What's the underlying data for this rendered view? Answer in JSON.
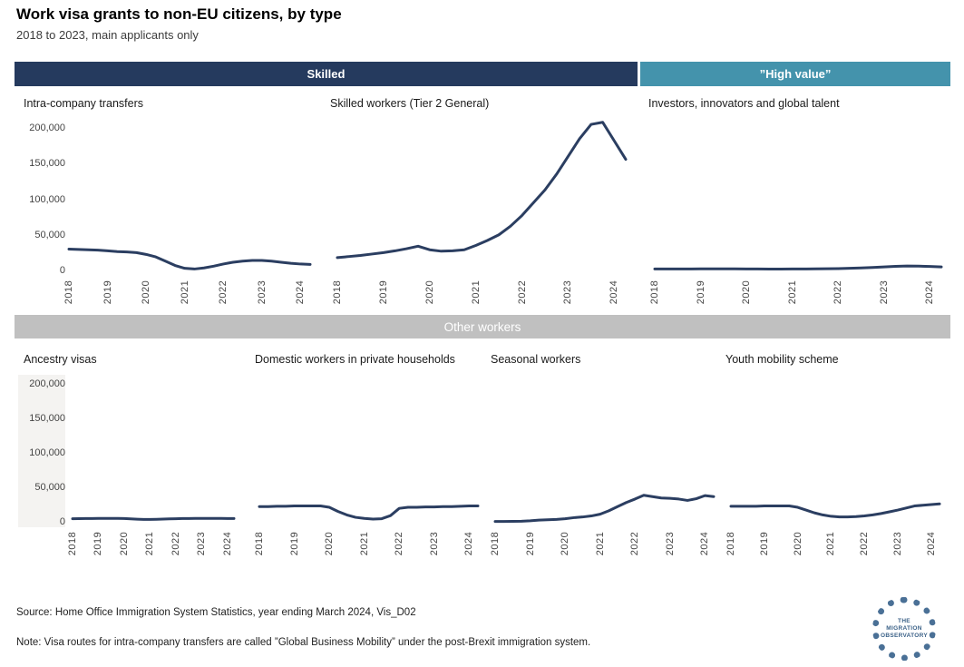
{
  "header": {
    "title": "Work visa grants to non-EU citizens, by type",
    "subtitle": "2018 to 2023, main applicants only"
  },
  "bands": {
    "skilled": "Skilled",
    "high_value": "”High value”",
    "other_workers": "Other workers"
  },
  "colors": {
    "navy_band": "#253a5e",
    "teal_band": "#4493ac",
    "gray_band": "#c0c0c0",
    "line": "#2b3e61",
    "axis_panel_bg": "#f4f3f1"
  },
  "axis": {
    "xlim": [
      2018,
      2024.25
    ],
    "ylim": [
      0,
      200000
    ],
    "xticks": [
      2018,
      2019,
      2020,
      2021,
      2022,
      2023,
      2024
    ],
    "yticks": [
      0,
      50000,
      100000,
      150000,
      200000
    ]
  },
  "chart_data": [
    {
      "type": "line",
      "title": "Intra-company transfers",
      "group": "Skilled",
      "x": [
        2018,
        2018.25,
        2018.5,
        2018.75,
        2019,
        2019.25,
        2019.5,
        2019.75,
        2020,
        2020.25,
        2020.5,
        2020.75,
        2021,
        2021.25,
        2021.5,
        2021.75,
        2022,
        2022.25,
        2022.5,
        2022.75,
        2023,
        2023.25,
        2023.5,
        2023.75,
        2024,
        2024.25
      ],
      "y": [
        30000,
        29500,
        29000,
        28500,
        27500,
        26500,
        26000,
        25000,
        22500,
        19000,
        13000,
        7000,
        3000,
        2000,
        3500,
        6000,
        9000,
        11500,
        13000,
        14000,
        14000,
        13000,
        11500,
        10000,
        9000,
        8500
      ]
    },
    {
      "type": "line",
      "title": "Skilled workers (Tier 2 General)",
      "group": "Skilled",
      "x": [
        2018,
        2018.25,
        2018.5,
        2018.75,
        2019,
        2019.25,
        2019.5,
        2019.75,
        2020,
        2020.25,
        2020.5,
        2020.75,
        2021,
        2021.25,
        2021.5,
        2021.75,
        2022,
        2022.25,
        2022.5,
        2022.75,
        2023,
        2023.25,
        2023.5,
        2023.75,
        2024,
        2024.25
      ],
      "y": [
        18000,
        19500,
        21000,
        23000,
        25000,
        27500,
        30500,
        34000,
        29000,
        27000,
        27500,
        29000,
        35000,
        42000,
        50000,
        62000,
        77000,
        95000,
        113000,
        135000,
        160000,
        185000,
        205000,
        208000,
        182000,
        156000
      ]
    },
    {
      "type": "line",
      "title": "Investors, innovators and global talent",
      "group": "”High value”",
      "x": [
        2018,
        2018.25,
        2018.5,
        2018.75,
        2019,
        2019.25,
        2019.5,
        2019.75,
        2020,
        2020.25,
        2020.5,
        2020.75,
        2021,
        2021.25,
        2021.5,
        2021.75,
        2022,
        2022.25,
        2022.5,
        2022.75,
        2023,
        2023.25,
        2023.5,
        2023.75,
        2024,
        2024.25
      ],
      "y": [
        2000,
        2000,
        2100,
        2100,
        2200,
        2300,
        2300,
        2200,
        2100,
        2000,
        1900,
        1900,
        2000,
        2100,
        2200,
        2400,
        2600,
        3000,
        3500,
        4200,
        5000,
        5700,
        6200,
        6000,
        5500,
        5000
      ]
    },
    {
      "type": "line",
      "title": "Ancestry visas",
      "group": "Other workers",
      "x": [
        2018,
        2018.25,
        2018.5,
        2018.75,
        2019,
        2019.25,
        2019.5,
        2019.75,
        2020,
        2020.25,
        2020.5,
        2020.75,
        2021,
        2021.25,
        2021.5,
        2021.75,
        2022,
        2022.25,
        2022.5,
        2022.75,
        2023,
        2023.25,
        2023.5,
        2023.75,
        2024,
        2024.25
      ],
      "y": [
        4500,
        4600,
        4700,
        4800,
        5000,
        5000,
        5000,
        4900,
        4700,
        4200,
        3800,
        3500,
        3400,
        3600,
        3900,
        4200,
        4500,
        4700,
        4800,
        4900,
        5000,
        5000,
        4900,
        4900,
        4800,
        4800
      ]
    },
    {
      "type": "line",
      "title": "Domestic workers in private households",
      "group": "Other workers",
      "x": [
        2018,
        2018.25,
        2018.5,
        2018.75,
        2019,
        2019.25,
        2019.5,
        2019.75,
        2020,
        2020.25,
        2020.5,
        2020.75,
        2021,
        2021.25,
        2021.5,
        2021.75,
        2022,
        2022.25,
        2022.5,
        2022.75,
        2023,
        2023.25,
        2023.5,
        2023.75,
        2024,
        2024.25
      ],
      "y": [
        22000,
        22000,
        22500,
        22500,
        23000,
        23000,
        23000,
        23000,
        21000,
        15000,
        10000,
        6500,
        5000,
        4000,
        4500,
        9000,
        19500,
        21000,
        21000,
        21500,
        21500,
        22000,
        22000,
        22500,
        23000,
        23000
      ]
    },
    {
      "type": "line",
      "title": "Seasonal workers",
      "group": "Other workers",
      "x": [
        2018,
        2018.25,
        2018.5,
        2018.75,
        2019,
        2019.25,
        2019.5,
        2019.75,
        2020,
        2020.25,
        2020.5,
        2020.75,
        2021,
        2021.25,
        2021.5,
        2021.75,
        2022,
        2022.25,
        2022.5,
        2022.75,
        2023,
        2023.25,
        2023.5,
        2023.75,
        2024,
        2024.25
      ],
      "y": [
        500,
        500,
        600,
        800,
        1500,
        2500,
        3000,
        3500,
        4500,
        6000,
        7000,
        8500,
        11000,
        16000,
        22000,
        28000,
        33000,
        38500,
        36500,
        34500,
        34000,
        33000,
        31000,
        33500,
        38000,
        36500
      ]
    },
    {
      "type": "line",
      "title": "Youth mobility scheme",
      "group": "Other workers",
      "x": [
        2018,
        2018.25,
        2018.5,
        2018.75,
        2019,
        2019.25,
        2019.5,
        2019.75,
        2020,
        2020.25,
        2020.5,
        2020.75,
        2021,
        2021.25,
        2021.5,
        2021.75,
        2022,
        2022.25,
        2022.5,
        2022.75,
        2023,
        2023.25,
        2023.5,
        2023.75,
        2024,
        2024.25
      ],
      "y": [
        22500,
        22500,
        22500,
        22500,
        23000,
        23000,
        23000,
        23000,
        21000,
        17000,
        13000,
        10000,
        8000,
        7000,
        7000,
        7500,
        8500,
        10000,
        12000,
        14500,
        17000,
        20000,
        23000,
        24000,
        25000,
        26000
      ]
    }
  ],
  "footer": {
    "source": "Source: Home Office Immigration System Statistics, year ending March 2024, Vis_D02",
    "note": "Note: Visa routes for intra-company transfers are called ”Global Business Mobility” under the post-Brexit immigration system."
  },
  "logo": {
    "line1": "THE",
    "line2": "MIGRATION",
    "line3": "OBSERVATORY"
  }
}
